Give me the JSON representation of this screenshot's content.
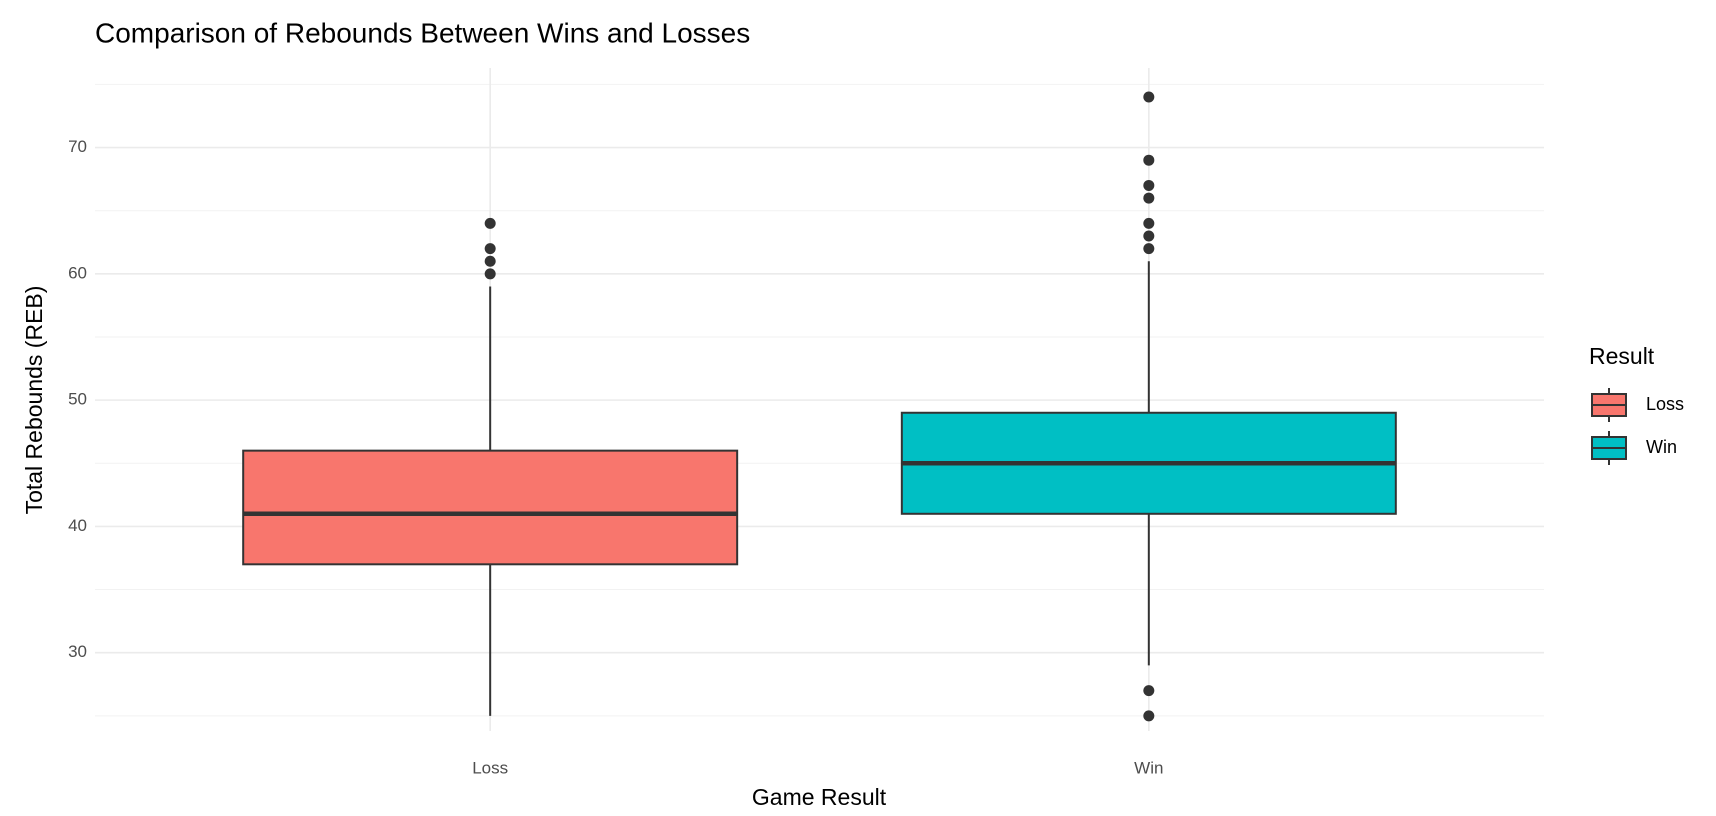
{
  "chart_data": {
    "type": "boxplot",
    "title": "Comparison of Rebounds Between Wins and Losses",
    "x_label": "Game Result",
    "y_label": "Total Rebounds (REB)",
    "legend_title": "Result",
    "legend_position": "right",
    "categories": [
      "Loss",
      "Win"
    ],
    "series": [
      {
        "name": "Loss",
        "color": "#F8766D",
        "whisker_low": 25,
        "q1": 37,
        "median": 41,
        "q3": 46,
        "whisker_high": 59,
        "outliers": [
          60,
          61,
          62,
          64
        ]
      },
      {
        "name": "Win",
        "color": "#00BFC4",
        "whisker_low": 29,
        "q1": 41,
        "median": 45,
        "q3": 49,
        "whisker_high": 61,
        "outliers": [
          25,
          27,
          62,
          63,
          64,
          66,
          67,
          69,
          74
        ]
      }
    ],
    "ylim": [
      23.8,
      76.3
    ],
    "yticks": [
      30,
      40,
      50,
      60,
      70
    ],
    "y_minor_ticks": [
      25,
      35,
      45,
      55,
      65,
      75
    ],
    "grid": true
  }
}
